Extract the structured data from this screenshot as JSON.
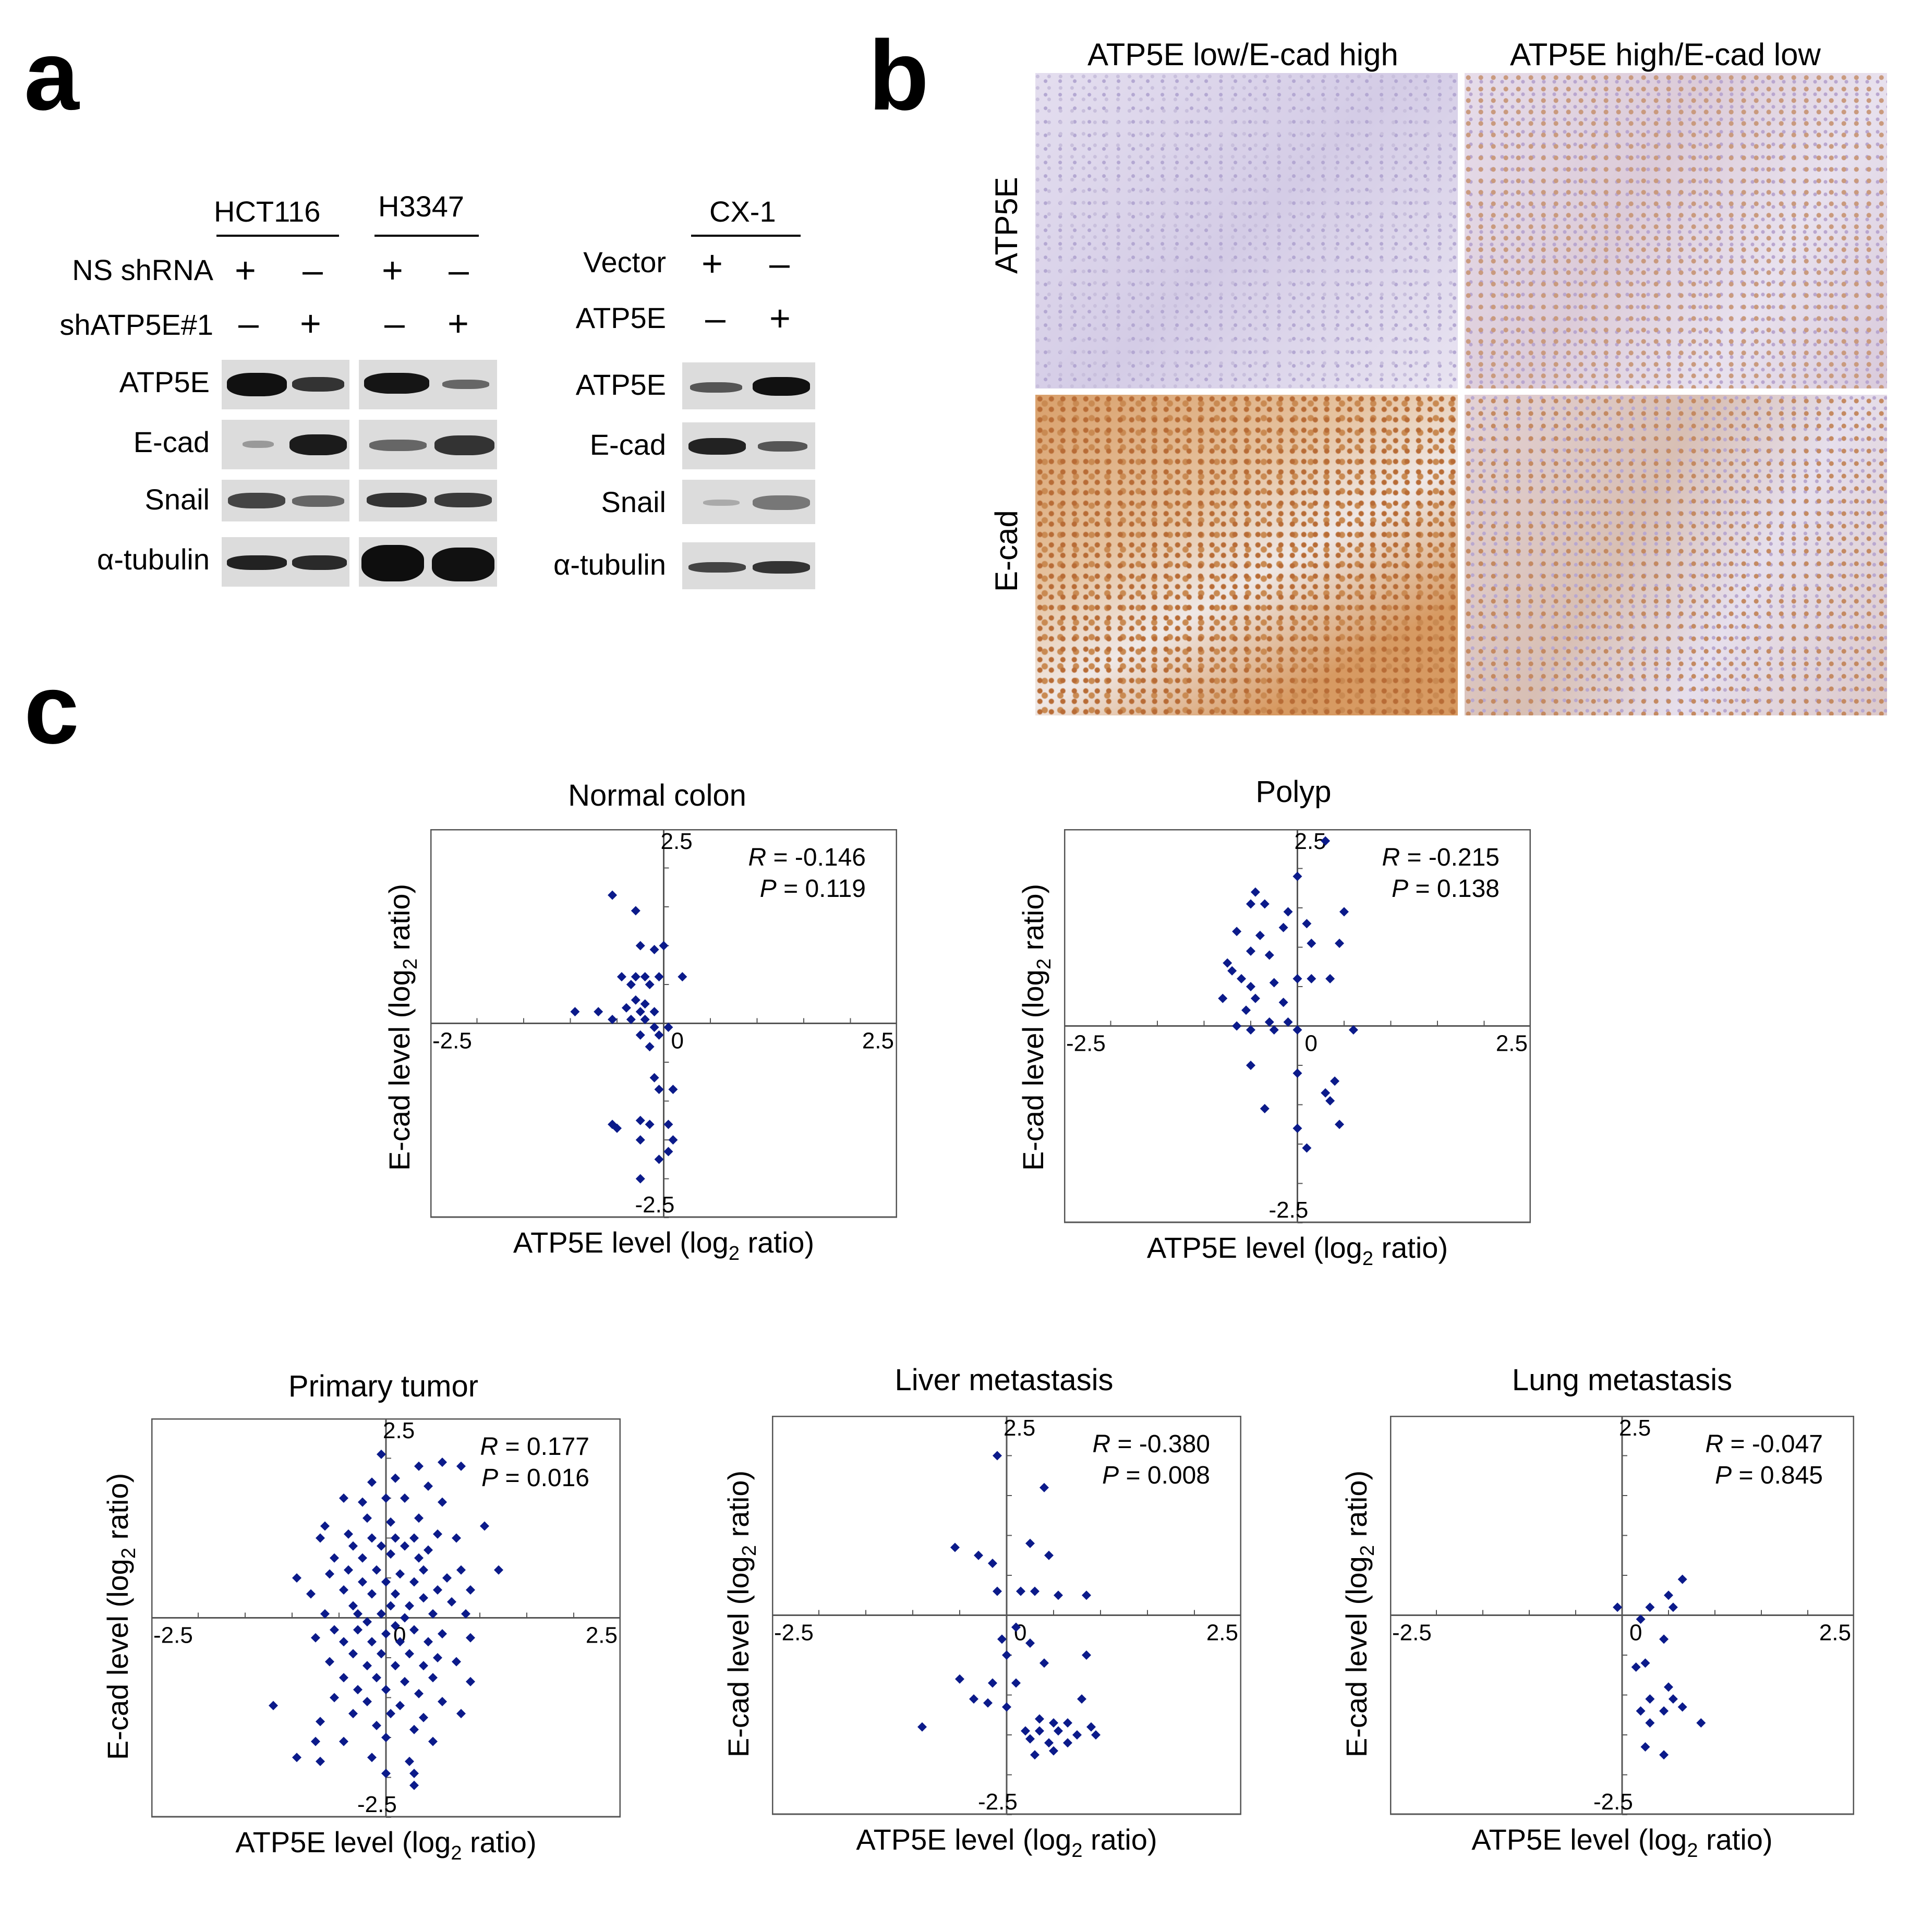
{
  "panels": {
    "a": "a",
    "b": "b",
    "c": "c"
  },
  "panel_a": {
    "left": {
      "groups": [
        "HCT116",
        "H3347"
      ],
      "rows": [
        {
          "label": "NS shRNA",
          "signs": [
            "+",
            "–",
            "+",
            "–"
          ]
        },
        {
          "label": "shATP5E#1",
          "signs": [
            "–",
            "+",
            "–",
            "+"
          ]
        }
      ],
      "blots": [
        "ATP5E",
        "E-cad",
        "Snail",
        "α-tubulin"
      ]
    },
    "right": {
      "group": "CX-1",
      "rows": [
        {
          "label": "Vector",
          "signs": [
            "+",
            "–"
          ]
        },
        {
          "label": "ATP5E",
          "signs": [
            "–",
            "+"
          ]
        }
      ],
      "blots": [
        "ATP5E",
        "E-cad",
        "Snail",
        "α-tubulin"
      ]
    }
  },
  "panel_b": {
    "col_labels": [
      "ATP5E low/E-cad high",
      "ATP5E high/E-cad low"
    ],
    "row_labels": [
      "ATP5E",
      "E-cad"
    ]
  },
  "colors": {
    "marker": "#0b1a8a",
    "axis": "#555555",
    "ihc_ecad_stain": "#c9844a",
    "ihc_bg": "#dcd6ea"
  },
  "chart_data": [
    {
      "type": "scatter",
      "title": "Normal colon",
      "xlabel": "ATP5E level (log2 ratio)",
      "ylabel": "E-cad level (log2 ratio)",
      "xlim": [
        -2.5,
        2.5
      ],
      "ylim": [
        -2.5,
        2.5
      ],
      "tick_labels": {
        "xmin": "-2.5",
        "xmax": "2.5",
        "ymax": "2.5",
        "ymin": "-2.5",
        "origin": "0"
      },
      "stats": {
        "R": "-0.146",
        "P": "0.119"
      },
      "points": [
        [
          -0.55,
          1.65
        ],
        [
          -0.3,
          1.45
        ],
        [
          -0.25,
          1.0
        ],
        [
          -0.1,
          0.95
        ],
        [
          0.0,
          1.0
        ],
        [
          -0.45,
          0.6
        ],
        [
          -0.3,
          0.6
        ],
        [
          -0.2,
          0.6
        ],
        [
          -0.05,
          0.6
        ],
        [
          0.2,
          0.6
        ],
        [
          -0.35,
          0.5
        ],
        [
          -0.15,
          0.5
        ],
        [
          -0.3,
          0.3
        ],
        [
          -0.2,
          0.25
        ],
        [
          -0.4,
          0.2
        ],
        [
          -0.25,
          0.15
        ],
        [
          -0.1,
          0.15
        ],
        [
          -0.95,
          0.15
        ],
        [
          -0.7,
          0.15
        ],
        [
          -0.55,
          0.05
        ],
        [
          -0.35,
          0.05
        ],
        [
          -0.2,
          0.05
        ],
        [
          -0.1,
          -0.05
        ],
        [
          0.05,
          -0.05
        ],
        [
          -0.25,
          -0.15
        ],
        [
          -0.05,
          -0.15
        ],
        [
          -0.15,
          -0.3
        ],
        [
          -0.1,
          -0.7
        ],
        [
          -0.05,
          -0.85
        ],
        [
          0.1,
          -0.85
        ],
        [
          -0.55,
          -1.3
        ],
        [
          -0.5,
          -1.35
        ],
        [
          -0.25,
          -1.25
        ],
        [
          -0.15,
          -1.3
        ],
        [
          0.05,
          -1.3
        ],
        [
          -0.25,
          -1.5
        ],
        [
          0.1,
          -1.5
        ],
        [
          -0.05,
          -1.75
        ],
        [
          0.05,
          -1.65
        ],
        [
          -0.25,
          -2.0
        ]
      ]
    },
    {
      "type": "scatter",
      "title": "Polyp",
      "xlabel": "ATP5E level (log2 ratio)",
      "ylabel": "E-cad level (log2 ratio)",
      "xlim": [
        -2.5,
        2.5
      ],
      "ylim": [
        -2.5,
        2.5
      ],
      "tick_labels": {
        "xmin": "-2.5",
        "xmax": "2.5",
        "ymax": "2.5",
        "ymin": "-2.5",
        "origin": "0"
      },
      "stats": {
        "R": "-0.215",
        "P": "0.138"
      },
      "points": [
        [
          0.3,
          2.35
        ],
        [
          -0.45,
          1.7
        ],
        [
          -0.35,
          1.55
        ],
        [
          0.0,
          1.9
        ],
        [
          -0.5,
          1.55
        ],
        [
          -0.1,
          1.45
        ],
        [
          -0.15,
          1.25
        ],
        [
          0.1,
          1.3
        ],
        [
          0.5,
          1.45
        ],
        [
          -0.65,
          1.2
        ],
        [
          -0.4,
          1.15
        ],
        [
          -0.5,
          0.95
        ],
        [
          -0.3,
          0.9
        ],
        [
          -0.75,
          0.8
        ],
        [
          -0.7,
          0.7
        ],
        [
          0.15,
          1.05
        ],
        [
          0.45,
          1.05
        ],
        [
          -0.6,
          0.6
        ],
        [
          -0.5,
          0.5
        ],
        [
          0.0,
          0.6
        ],
        [
          0.15,
          0.6
        ],
        [
          0.35,
          0.6
        ],
        [
          -0.25,
          0.55
        ],
        [
          -0.8,
          0.35
        ],
        [
          -0.45,
          0.35
        ],
        [
          -0.15,
          0.3
        ],
        [
          -0.55,
          0.2
        ],
        [
          -0.1,
          0.05
        ],
        [
          -0.25,
          -0.05
        ],
        [
          -0.5,
          -0.05
        ],
        [
          -0.3,
          0.05
        ],
        [
          -0.65,
          0.0
        ],
        [
          0.0,
          -0.05
        ],
        [
          0.6,
          -0.05
        ],
        [
          -0.5,
          -0.5
        ],
        [
          0.4,
          -0.7
        ],
        [
          0.0,
          -0.6
        ],
        [
          0.3,
          -0.85
        ],
        [
          0.35,
          -0.95
        ],
        [
          -0.35,
          -1.05
        ],
        [
          0.45,
          -1.25
        ],
        [
          0.0,
          -1.3
        ],
        [
          0.1,
          -1.55
        ]
      ]
    },
    {
      "type": "scatter",
      "title": "Primary tumor",
      "xlabel": "ATP5E level (log2 ratio)",
      "ylabel": "E-cad level (log2 ratio)",
      "xlim": [
        -2.5,
        2.5
      ],
      "ylim": [
        -2.5,
        2.5
      ],
      "tick_labels": {
        "xmin": "-2.5",
        "xmax": "2.5",
        "ymax": "2.5",
        "ymin": "-2.5",
        "origin": "0"
      },
      "stats": {
        "R": "0.177",
        "P": "0.016"
      },
      "points": [
        [
          -0.05,
          2.05
        ],
        [
          0.35,
          1.9
        ],
        [
          0.6,
          1.95
        ],
        [
          0.8,
          1.9
        ],
        [
          -0.15,
          1.7
        ],
        [
          0.1,
          1.75
        ],
        [
          0.45,
          1.65
        ],
        [
          -0.45,
          1.5
        ],
        [
          -0.25,
          1.45
        ],
        [
          0.0,
          1.5
        ],
        [
          0.2,
          1.5
        ],
        [
          0.6,
          1.45
        ],
        [
          -0.65,
          1.15
        ],
        [
          -0.2,
          1.25
        ],
        [
          0.05,
          1.2
        ],
        [
          0.35,
          1.25
        ],
        [
          1.05,
          1.15
        ],
        [
          -0.7,
          1.0
        ],
        [
          -0.4,
          1.05
        ],
        [
          -0.15,
          1.0
        ],
        [
          0.1,
          1.0
        ],
        [
          0.3,
          1.0
        ],
        [
          0.55,
          1.05
        ],
        [
          0.75,
          1.0
        ],
        [
          -0.35,
          0.9
        ],
        [
          -0.05,
          0.9
        ],
        [
          0.2,
          0.9
        ],
        [
          0.45,
          0.85
        ],
        [
          -0.55,
          0.75
        ],
        [
          -0.25,
          0.75
        ],
        [
          0.05,
          0.8
        ],
        [
          0.35,
          0.75
        ],
        [
          0.8,
          0.6
        ],
        [
          1.2,
          0.6
        ],
        [
          -0.95,
          0.5
        ],
        [
          -0.6,
          0.55
        ],
        [
          -0.4,
          0.6
        ],
        [
          -0.1,
          0.6
        ],
        [
          0.15,
          0.55
        ],
        [
          0.4,
          0.6
        ],
        [
          0.65,
          0.5
        ],
        [
          -0.25,
          0.45
        ],
        [
          0.0,
          0.45
        ],
        [
          0.3,
          0.45
        ],
        [
          0.55,
          0.35
        ],
        [
          0.9,
          0.35
        ],
        [
          -0.8,
          0.3
        ],
        [
          -0.45,
          0.35
        ],
        [
          -0.15,
          0.3
        ],
        [
          0.1,
          0.3
        ],
        [
          0.4,
          0.25
        ],
        [
          0.7,
          0.2
        ],
        [
          -0.35,
          0.15
        ],
        [
          0.05,
          0.15
        ],
        [
          0.25,
          0.15
        ],
        [
          -0.65,
          0.05
        ],
        [
          -0.3,
          0.05
        ],
        [
          -0.05,
          0.05
        ],
        [
          0.2,
          0.0
        ],
        [
          0.5,
          0.05
        ],
        [
          0.85,
          0.05
        ],
        [
          -0.2,
          -0.05
        ],
        [
          0.1,
          -0.1
        ],
        [
          -0.55,
          -0.15
        ],
        [
          -0.3,
          -0.15
        ],
        [
          0.0,
          -0.2
        ],
        [
          0.3,
          -0.15
        ],
        [
          0.6,
          -0.2
        ],
        [
          -0.75,
          -0.25
        ],
        [
          -0.45,
          -0.3
        ],
        [
          -0.15,
          -0.3
        ],
        [
          0.15,
          -0.3
        ],
        [
          0.45,
          -0.3
        ],
        [
          0.9,
          -0.25
        ],
        [
          -0.35,
          -0.45
        ],
        [
          -0.05,
          -0.45
        ],
        [
          0.25,
          -0.45
        ],
        [
          0.55,
          -0.5
        ],
        [
          -0.6,
          -0.55
        ],
        [
          -0.2,
          -0.6
        ],
        [
          0.1,
          -0.6
        ],
        [
          0.4,
          -0.6
        ],
        [
          0.75,
          -0.55
        ],
        [
          -0.45,
          -0.75
        ],
        [
          -0.1,
          -0.75
        ],
        [
          0.2,
          -0.8
        ],
        [
          0.5,
          -0.75
        ],
        [
          0.9,
          -0.8
        ],
        [
          -0.3,
          -0.9
        ],
        [
          0.0,
          -0.9
        ],
        [
          0.35,
          -0.95
        ],
        [
          -0.55,
          -1.0
        ],
        [
          -0.2,
          -1.05
        ],
        [
          0.15,
          -1.1
        ],
        [
          0.6,
          -1.05
        ],
        [
          -0.35,
          -1.2
        ],
        [
          0.05,
          -1.2
        ],
        [
          0.4,
          -1.25
        ],
        [
          0.8,
          -1.2
        ],
        [
          -1.2,
          -1.1
        ],
        [
          -0.7,
          -1.3
        ],
        [
          -0.1,
          -1.35
        ],
        [
          0.3,
          -1.4
        ],
        [
          -0.75,
          -1.55
        ],
        [
          -0.45,
          -1.55
        ],
        [
          0.0,
          -1.5
        ],
        [
          0.5,
          -1.55
        ],
        [
          -0.15,
          -1.75
        ],
        [
          0.25,
          -1.8
        ],
        [
          -0.95,
          -1.75
        ],
        [
          -0.7,
          -1.8
        ],
        [
          0.0,
          -1.95
        ],
        [
          0.3,
          -1.95
        ],
        [
          0.3,
          -2.1
        ]
      ]
    },
    {
      "type": "scatter",
      "title": "Liver metastasis",
      "xlabel": "ATP5E level (log2 ratio)",
      "ylabel": "E-cad level (log2 ratio)",
      "xlim": [
        -2.5,
        2.5
      ],
      "ylim": [
        -2.5,
        2.5
      ],
      "tick_labels": {
        "xmin": "-2.5",
        "xmax": "2.5",
        "ymax": "2.5",
        "ymin": "-2.5",
        "origin": "0"
      },
      "stats": {
        "R": "-0.380",
        "P": "0.008"
      },
      "points": [
        [
          -0.1,
          2.0
        ],
        [
          0.4,
          1.6
        ],
        [
          -0.55,
          0.85
        ],
        [
          -0.3,
          0.75
        ],
        [
          -0.15,
          0.65
        ],
        [
          0.25,
          0.9
        ],
        [
          0.45,
          0.75
        ],
        [
          -0.1,
          0.3
        ],
        [
          0.15,
          0.3
        ],
        [
          0.3,
          0.3
        ],
        [
          0.55,
          0.25
        ],
        [
          0.85,
          0.25
        ],
        [
          0.1,
          -0.15
        ],
        [
          -0.05,
          -0.3
        ],
        [
          0.25,
          -0.35
        ],
        [
          0.0,
          -0.5
        ],
        [
          0.85,
          -0.5
        ],
        [
          0.4,
          -0.6
        ],
        [
          -0.5,
          -0.8
        ],
        [
          -0.15,
          -0.85
        ],
        [
          0.1,
          -0.85
        ],
        [
          -0.35,
          -1.05
        ],
        [
          -0.2,
          -1.1
        ],
        [
          0.0,
          -1.15
        ],
        [
          0.8,
          -1.05
        ],
        [
          0.35,
          -1.3
        ],
        [
          0.5,
          -1.35
        ],
        [
          0.65,
          -1.35
        ],
        [
          0.9,
          -1.4
        ],
        [
          -0.9,
          -1.4
        ],
        [
          0.2,
          -1.45
        ],
        [
          0.35,
          -1.45
        ],
        [
          0.55,
          -1.45
        ],
        [
          0.75,
          -1.5
        ],
        [
          0.95,
          -1.5
        ],
        [
          0.25,
          -1.55
        ],
        [
          0.45,
          -1.6
        ],
        [
          0.65,
          -1.6
        ],
        [
          0.3,
          -1.75
        ],
        [
          0.5,
          -1.7
        ]
      ]
    },
    {
      "type": "scatter",
      "title": "Lung metastasis",
      "xlabel": "ATP5E level (log2 ratio)",
      "ylabel": "E-cad level (log2 ratio)",
      "xlim": [
        -2.5,
        2.5
      ],
      "ylim": [
        -2.5,
        2.5
      ],
      "tick_labels": {
        "xmin": "-2.5",
        "xmax": "2.5",
        "ymax": "2.5",
        "ymin": "-2.5",
        "origin": "0"
      },
      "stats": {
        "R": "-0.047",
        "P": "0.845"
      },
      "points": [
        [
          0.65,
          0.45
        ],
        [
          0.5,
          0.25
        ],
        [
          -0.05,
          0.1
        ],
        [
          0.3,
          0.1
        ],
        [
          0.55,
          0.1
        ],
        [
          0.2,
          -0.05
        ],
        [
          0.45,
          -0.3
        ],
        [
          0.25,
          -0.6
        ],
        [
          0.15,
          -0.65
        ],
        [
          0.5,
          -0.9
        ],
        [
          0.3,
          -1.05
        ],
        [
          0.55,
          -1.05
        ],
        [
          0.2,
          -1.2
        ],
        [
          0.45,
          -1.2
        ],
        [
          0.65,
          -1.15
        ],
        [
          0.85,
          -1.35
        ],
        [
          0.3,
          -1.35
        ],
        [
          0.25,
          -1.65
        ],
        [
          0.45,
          -1.75
        ]
      ]
    }
  ]
}
